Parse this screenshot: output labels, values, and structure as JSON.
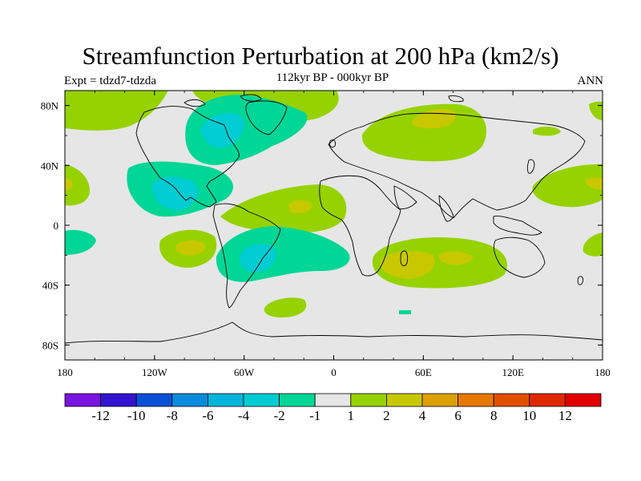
{
  "title": "Streamfunction Perturbation at 200 hPa (km2/s)",
  "subtitle": "112kyr BP - 000kyr BP",
  "left_label": "Expt = tdzd7-tdzda",
  "right_label": "ANN",
  "map": {
    "projection": "cylindrical equidistant",
    "lon_range": [
      -180,
      180
    ],
    "lat_range": [
      -90,
      90
    ],
    "x_ticks": [
      {
        "lon": -180,
        "label": "180"
      },
      {
        "lon": -120,
        "label": "120W"
      },
      {
        "lon": -60,
        "label": "60W"
      },
      {
        "lon": 0,
        "label": "0"
      },
      {
        "lon": 60,
        "label": "60E"
      },
      {
        "lon": 120,
        "label": "120E"
      },
      {
        "lon": 180,
        "label": "180"
      }
    ],
    "y_ticks": [
      {
        "lat": 80,
        "label": "80N"
      },
      {
        "lat": 40,
        "label": "40N"
      },
      {
        "lat": 0,
        "label": "0"
      },
      {
        "lat": -40,
        "label": "40S"
      },
      {
        "lat": -80,
        "label": "80S"
      }
    ],
    "background_color": "#e6e6e6",
    "coast_color": "#000000"
  },
  "colorbar": {
    "colors": [
      "#7a14e0",
      "#3214d0",
      "#0a50d6",
      "#0a8cdc",
      "#00b4dc",
      "#00ccd2",
      "#00d696",
      "#e6e6e6",
      "#96d200",
      "#c8c800",
      "#dca000",
      "#e67800",
      "#e05000",
      "#e02800",
      "#e00000"
    ],
    "labels": [
      "-12",
      "-10",
      "-8",
      "-6",
      "-4",
      "-2",
      "-1",
      "1",
      "2",
      "4",
      "6",
      "8",
      "10",
      "12"
    ]
  },
  "chart_data": {
    "type": "contour-map",
    "variable": "Streamfunction perturbation at 200 hPa",
    "units": "km2/s",
    "difference": "112kyr BP - 000kyr BP",
    "season": "ANN",
    "levels": [
      -12,
      -10,
      -8,
      -6,
      -4,
      -2,
      -1,
      1,
      2,
      4,
      6,
      8,
      10,
      12
    ],
    "features": [
      {
        "name": "North America / Arctic",
        "lon": -60,
        "lat": 62,
        "value_range": [
          -4,
          -1
        ]
      },
      {
        "name": "Gulf of Mexico / Central America",
        "lon": -105,
        "lat": 22,
        "value_range": [
          -4,
          -1
        ]
      },
      {
        "name": "South America",
        "lon": -58,
        "lat": -22,
        "value_range": [
          -4,
          -1
        ]
      },
      {
        "name": "North-West Pacific (dateline)",
        "lon": -160,
        "lat": 70,
        "value_range": [
          1,
          2
        ]
      },
      {
        "name": "Western Pacific near dateline",
        "lon": 175,
        "lat": 28,
        "value_range": [
          1,
          4
        ]
      },
      {
        "name": "South-East Pacific",
        "lon": -85,
        "lat": -15,
        "value_range": [
          1,
          4
        ]
      },
      {
        "name": "Tropical Atlantic",
        "lon": -20,
        "lat": 10,
        "value_range": [
          1,
          4
        ]
      },
      {
        "name": "Southern Atlantic",
        "lon": -30,
        "lat": -55,
        "value_range": [
          1,
          2
        ]
      },
      {
        "name": "Northern Eurasia",
        "lon": 65,
        "lat": 68,
        "value_range": [
          1,
          4
        ]
      },
      {
        "name": "Southern Indian Ocean",
        "lon": 65,
        "lat": -25,
        "value_range": [
          1,
          4
        ]
      },
      {
        "name": "North Pacific / Japan",
        "lon": 150,
        "lat": 35,
        "value_range": [
          1,
          4
        ]
      }
    ]
  }
}
